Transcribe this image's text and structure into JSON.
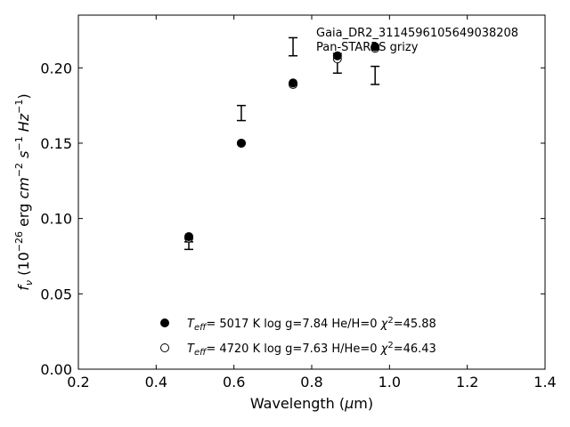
{
  "chart_data": {
    "type": "scatter",
    "title": "",
    "annotation_lines": [
      "Gaia_DR2_3114596105649038208",
      "Pan-STARRS grizy"
    ],
    "xlabel": "Wavelength (μm)",
    "ylabel": "f_ν (10^-26 erg cm^-2 s^-1 Hz^-1)",
    "xlim": [
      0.2,
      1.4
    ],
    "ylim": [
      0.0,
      0.235
    ],
    "xticks": [
      0.2,
      0.4,
      0.6,
      0.8,
      1.0,
      1.2,
      1.4
    ],
    "yticks": [
      0.0,
      0.05,
      0.1,
      0.15,
      0.2
    ],
    "xtick_labels": [
      "0.2",
      "0.4",
      "0.6",
      "0.8",
      "1.0",
      "1.2",
      "1.4"
    ],
    "ytick_labels": [
      "0.00",
      "0.05",
      "0.10",
      "0.15",
      "0.20"
    ],
    "grid": false,
    "legend_position": "lower-center",
    "observed": {
      "x": [
        0.484,
        0.619,
        0.752,
        0.866,
        0.963
      ],
      "y": [
        0.082,
        0.17,
        0.214,
        0.203,
        0.195
      ],
      "err": [
        0.0025,
        0.005,
        0.006,
        0.0065,
        0.006
      ]
    },
    "series": [
      {
        "marker": "filled-circle",
        "x": [
          0.484,
          0.619,
          0.752,
          0.866,
          0.963
        ],
        "y": [
          0.088,
          0.15,
          0.19,
          0.208,
          0.214
        ],
        "legend_text": "T_eff= 5017 K log g=7.84 He/H=0 χ²=45.88"
      },
      {
        "marker": "open-circle",
        "x": [
          0.484,
          0.619,
          0.752,
          0.866,
          0.963
        ],
        "y": [
          0.087,
          0.15,
          0.189,
          0.206,
          0.213
        ],
        "legend_text": "T_eff= 4720 K log g=7.63 H/He=0 χ²=46.43"
      }
    ],
    "colors": {
      "marker": "#000000",
      "errorbar": "#000000"
    }
  }
}
